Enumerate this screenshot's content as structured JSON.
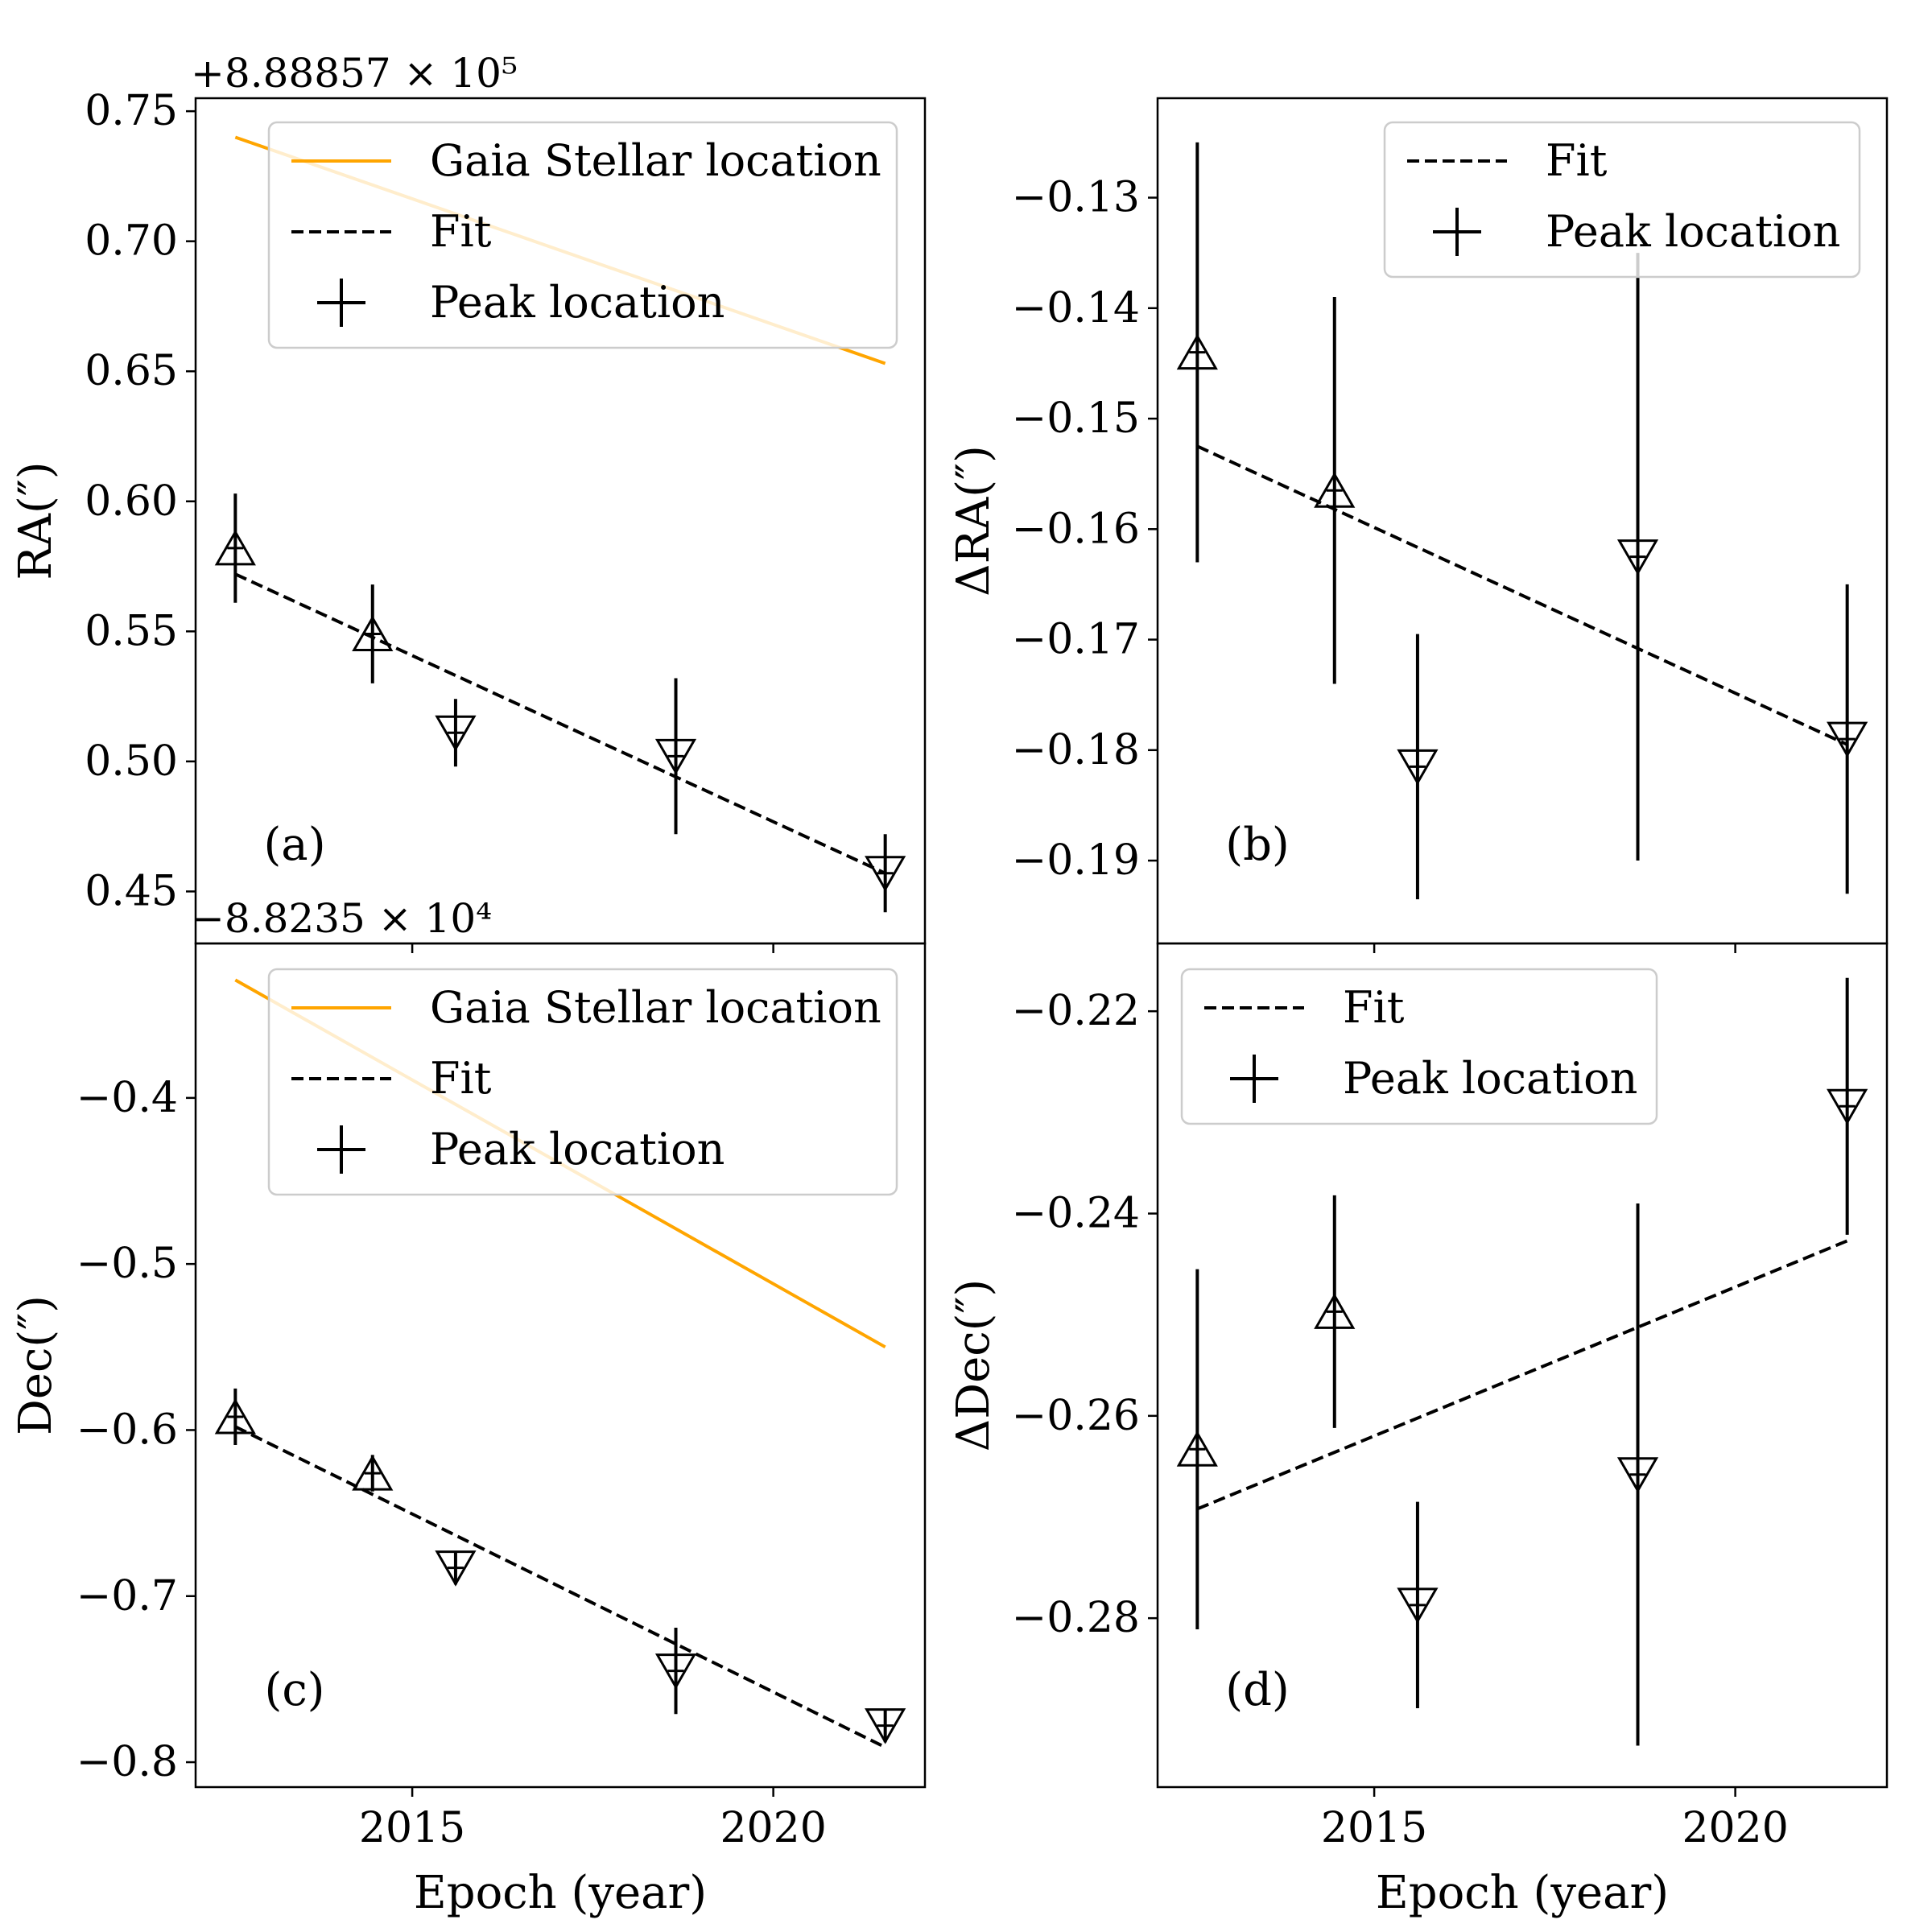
{
  "figure": {
    "xlabel": "Epoch (year)"
  },
  "colors": {
    "gaia": "#ffa500",
    "fit": "#000000",
    "peak": "#000000",
    "frame": "#000000"
  },
  "chart_data": [
    {
      "id": "a",
      "panel_label": "(a)",
      "type": "scatter",
      "ylabel": "RA(″)",
      "offset_text": "+8.88857 × 10⁵",
      "xlim": [
        2012.0,
        2022.1
      ],
      "ylim": [
        0.43,
        0.755
      ],
      "xticks": [
        2015,
        2020
      ],
      "xtick_labels": [
        "2015",
        "2020"
      ],
      "yticks": [
        0.45,
        0.5,
        0.55,
        0.6,
        0.65,
        0.7,
        0.75
      ],
      "ytick_labels": [
        "0.45",
        "0.50",
        "0.55",
        "0.60",
        "0.65",
        "0.70",
        "0.75"
      ],
      "legend": {
        "position": "upper-right",
        "entries": [
          "Gaia Stellar location",
          "Fit",
          "Peak location"
        ]
      },
      "gaia": {
        "x": [
          2012.55,
          2021.55
        ],
        "y": [
          0.74,
          0.653
        ]
      },
      "fit": {
        "x": [
          2012.55,
          2021.55
        ],
        "y": [
          0.572,
          0.457
        ]
      },
      "points": [
        {
          "x": 2012.55,
          "y": 0.582,
          "yerr": 0.021,
          "marker": "up"
        },
        {
          "x": 2014.45,
          "y": 0.549,
          "yerr": 0.019,
          "marker": "up"
        },
        {
          "x": 2015.6,
          "y": 0.511,
          "yerr": 0.013,
          "marker": "down"
        },
        {
          "x": 2018.65,
          "y": 0.502,
          "yerr": 0.03,
          "marker": "down"
        },
        {
          "x": 2021.55,
          "y": 0.457,
          "yerr": 0.015,
          "marker": "down"
        }
      ]
    },
    {
      "id": "b",
      "panel_label": "(b)",
      "type": "scatter",
      "ylabel": "ΔRA(″)",
      "offset_text": "",
      "xlim": [
        2012.0,
        2022.1
      ],
      "ylim": [
        -0.1975,
        -0.121
      ],
      "xticks": [
        2015,
        2020
      ],
      "xtick_labels": [
        "2015",
        "2020"
      ],
      "yticks": [
        -0.19,
        -0.18,
        -0.17,
        -0.16,
        -0.15,
        -0.14,
        -0.13
      ],
      "ytick_labels": [
        "−0.19",
        "−0.18",
        "−0.17",
        "−0.16",
        "−0.15",
        "−0.14",
        "−0.13"
      ],
      "legend": {
        "position": "upper-right",
        "entries": [
          "Fit",
          "Peak location"
        ]
      },
      "fit": {
        "x": [
          2012.55,
          2021.55
        ],
        "y": [
          -0.1525,
          -0.1795
        ]
      },
      "points": [
        {
          "x": 2012.55,
          "y": -0.144,
          "yerr": 0.019,
          "marker": "up"
        },
        {
          "x": 2014.45,
          "y": -0.1565,
          "yerr": 0.0175,
          "marker": "up"
        },
        {
          "x": 2015.6,
          "y": -0.1815,
          "yerr": 0.012,
          "marker": "down"
        },
        {
          "x": 2018.65,
          "y": -0.1625,
          "yerr": 0.0275,
          "marker": "down"
        },
        {
          "x": 2021.55,
          "y": -0.179,
          "yerr": 0.014,
          "marker": "down"
        }
      ]
    },
    {
      "id": "c",
      "panel_label": "(c)",
      "type": "scatter",
      "ylabel": "Dec(″)",
      "offset_text": "−8.8235 × 10⁴",
      "xlim": [
        2012.0,
        2022.1
      ],
      "ylim": [
        -0.815,
        -0.307
      ],
      "xticks": [
        2015,
        2020
      ],
      "xtick_labels": [
        "2015",
        "2020"
      ],
      "yticks": [
        -0.8,
        -0.7,
        -0.6,
        -0.5,
        -0.4
      ],
      "ytick_labels": [
        "−0.8",
        "−0.7",
        "−0.6",
        "−0.5",
        "−0.4"
      ],
      "legend": {
        "position": "upper-right",
        "entries": [
          "Gaia Stellar location",
          "Fit",
          "Peak location"
        ]
      },
      "gaia": {
        "x": [
          2012.55,
          2021.55
        ],
        "y": [
          -0.329,
          -0.55
        ]
      },
      "fit": {
        "x": [
          2012.55,
          2021.55
        ],
        "y": [
          -0.598,
          -0.791
        ]
      },
      "points": [
        {
          "x": 2012.55,
          "y": -0.592,
          "yerr": 0.017,
          "marker": "up"
        },
        {
          "x": 2014.45,
          "y": -0.626,
          "yerr": 0.011,
          "marker": "up"
        },
        {
          "x": 2015.6,
          "y": -0.683,
          "yerr": 0.01,
          "marker": "down"
        },
        {
          "x": 2018.65,
          "y": -0.745,
          "yerr": 0.026,
          "marker": "down"
        },
        {
          "x": 2021.55,
          "y": -0.778,
          "yerr": 0.01,
          "marker": "down"
        }
      ]
    },
    {
      "id": "d",
      "panel_label": "(d)",
      "type": "scatter",
      "ylabel": "ΔDec(″)",
      "offset_text": "",
      "xlim": [
        2012.0,
        2022.1
      ],
      "ylim": [
        -0.2967,
        -0.2133
      ],
      "xticks": [
        2015,
        2020
      ],
      "xtick_labels": [
        "2015",
        "2020"
      ],
      "yticks": [
        -0.28,
        -0.26,
        -0.24,
        -0.22
      ],
      "ytick_labels": [
        "−0.28",
        "−0.26",
        "−0.24",
        "−0.22"
      ],
      "legend": {
        "position": "upper-left",
        "entries": [
          "Fit",
          "Peak location"
        ]
      },
      "fit": {
        "x": [
          2012.55,
          2021.55
        ],
        "y": [
          -0.2692,
          -0.2427
        ]
      },
      "points": [
        {
          "x": 2012.55,
          "y": -0.2633,
          "yerr": 0.0178,
          "marker": "up"
        },
        {
          "x": 2014.45,
          "y": -0.2497,
          "yerr": 0.0115,
          "marker": "up"
        },
        {
          "x": 2015.6,
          "y": -0.2787,
          "yerr": 0.0102,
          "marker": "down"
        },
        {
          "x": 2018.65,
          "y": -0.2658,
          "yerr": 0.0268,
          "marker": "down"
        },
        {
          "x": 2021.55,
          "y": -0.2294,
          "yerr": 0.0127,
          "marker": "down"
        }
      ]
    }
  ]
}
